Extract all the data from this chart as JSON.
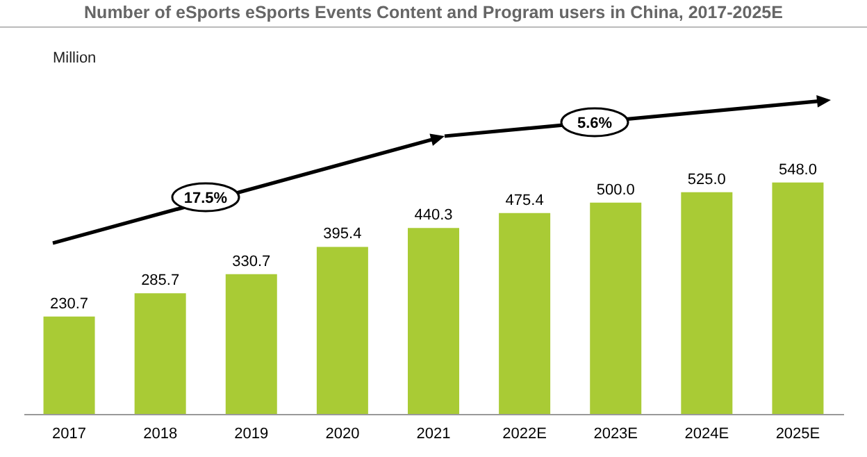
{
  "chart_data": {
    "type": "bar",
    "title": "Number of eSports eSports Events Content and Program users in China, 2017-2025E",
    "categories": [
      "2017",
      "2018",
      "2019",
      "2020",
      "2021",
      "2022E",
      "2023E",
      "2024E",
      "2025E"
    ],
    "values": [
      230.7,
      285.7,
      330.7,
      395.4,
      440.3,
      475.4,
      500.0,
      525.0,
      548.0
    ],
    "value_labels": [
      "230.7",
      "285.7",
      "330.7",
      "395.4",
      "440.3",
      "475.4",
      "500.0",
      "525.0",
      "548.0"
    ],
    "color": "#a9cb35",
    "annotations": [
      "Million",
      "17.5%",
      "5.6%"
    ]
  }
}
